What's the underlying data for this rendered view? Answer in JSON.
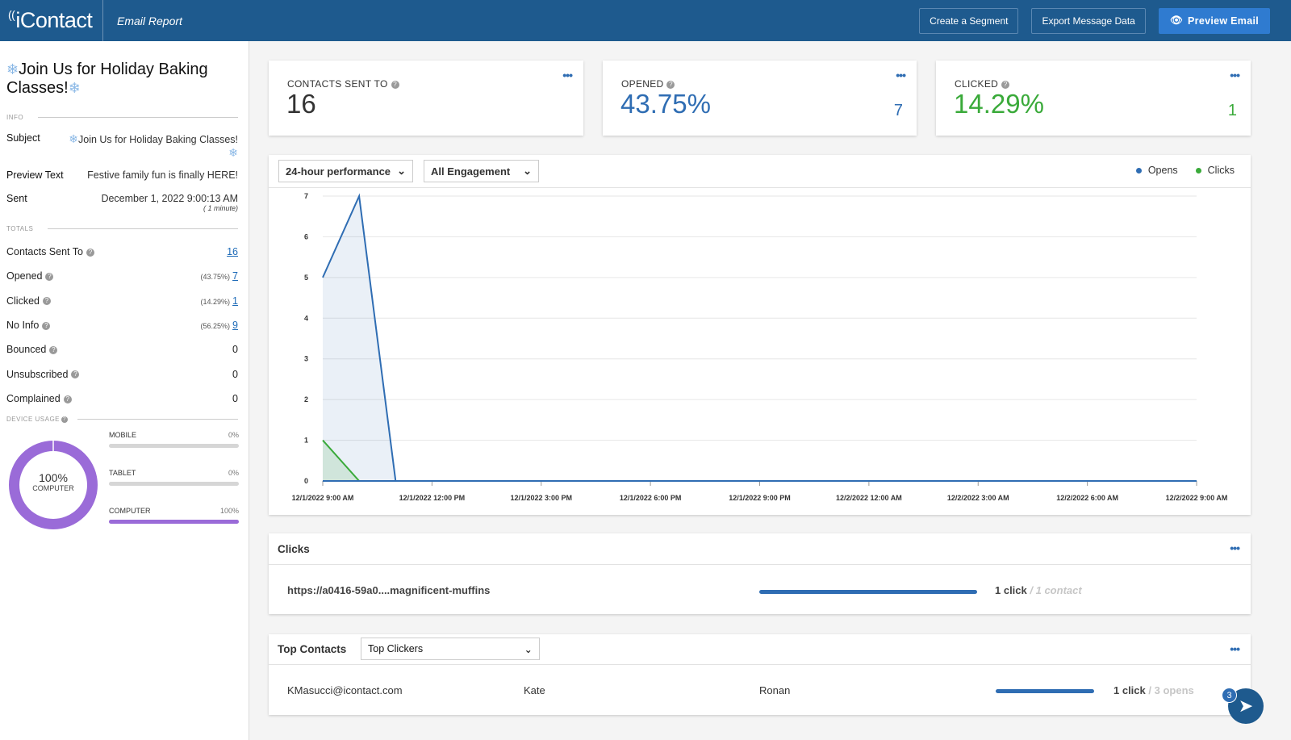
{
  "header": {
    "logo": "iContact",
    "page_label": "Email Report",
    "actions": {
      "create_segment": "Create a Segment",
      "export": "Export Message Data",
      "preview": "Preview Email"
    }
  },
  "sidebar": {
    "title": "Join Us for Holiday Baking Classes!",
    "info_label": "INFO",
    "subject_key": "Subject",
    "subject_val": "Join Us for Holiday Baking Classes!",
    "preview_key": "Preview Text",
    "preview_val": "Festive family fun is finally HERE!",
    "sent_key": "Sent",
    "sent_val": "December 1, 2022 9:00:13 AM",
    "sent_duration": "( 1 minute)",
    "totals_label": "TOTALS",
    "totals": [
      {
        "label": "Contacts Sent To",
        "pct": "",
        "value": "16",
        "link": true
      },
      {
        "label": "Opened",
        "pct": "(43.75%)",
        "value": "7",
        "link": true
      },
      {
        "label": "Clicked",
        "pct": "(14.29%)",
        "value": "1",
        "link": true
      },
      {
        "label": "No Info",
        "pct": "(56.25%)",
        "value": "9",
        "link": true
      },
      {
        "label": "Bounced",
        "pct": "",
        "value": "0",
        "link": false
      },
      {
        "label": "Unsubscribed",
        "pct": "",
        "value": "0",
        "link": false
      },
      {
        "label": "Complained",
        "pct": "",
        "value": "0",
        "link": false
      }
    ],
    "device_label": "DEVICE USAGE",
    "donut_pct": "100%",
    "donut_caption": "COMPUTER",
    "devices": [
      {
        "name": "MOBILE",
        "pct": "0%",
        "fill": 0
      },
      {
        "name": "TABLET",
        "pct": "0%",
        "fill": 0
      },
      {
        "name": "COMPUTER",
        "pct": "100%",
        "fill": 1
      }
    ]
  },
  "stats": {
    "sent": {
      "label": "CONTACTS SENT TO",
      "value": "16"
    },
    "opened": {
      "label": "OPENED",
      "value": "43.75%",
      "count": "7",
      "color": "#2f6db3"
    },
    "clicked": {
      "label": "CLICKED",
      "value": "14.29%",
      "count": "1",
      "color": "#3aaa3a"
    }
  },
  "chart_panel": {
    "performance_select": "24-hour performance",
    "engagement_select": "All Engagement",
    "legend": {
      "opens": "Opens",
      "clicks": "Clicks"
    }
  },
  "chart_data": {
    "type": "area",
    "x": [
      "12/1/2022 9:00 AM",
      "12/1/2022 10:00 AM",
      "12/1/2022 11:00 AM",
      "12/1/2022 12:00 PM",
      "12/1/2022 3:00 PM",
      "12/1/2022 6:00 PM",
      "12/1/2022 9:00 PM",
      "12/2/2022 12:00 AM",
      "12/2/2022 3:00 AM",
      "12/2/2022 6:00 AM",
      "12/2/2022 9:00 AM"
    ],
    "x_hours": [
      0,
      1,
      2,
      3,
      6,
      9,
      12,
      15,
      18,
      21,
      24
    ],
    "tick_labels": [
      "12/1/2022 9:00 AM",
      "12/1/2022 12:00 PM",
      "12/1/2022 3:00 PM",
      "12/1/2022 6:00 PM",
      "12/1/2022 9:00 PM",
      "12/2/2022 12:00 AM",
      "12/2/2022 3:00 AM",
      "12/2/2022 6:00 AM",
      "12/2/2022 9:00 AM"
    ],
    "series": [
      {
        "name": "Opens",
        "color": "#2f6db3",
        "values": [
          5,
          7,
          0,
          0,
          0,
          0,
          0,
          0,
          0,
          0,
          0
        ]
      },
      {
        "name": "Clicks",
        "color": "#3aaa3a",
        "values": [
          1,
          0,
          0,
          0,
          0,
          0,
          0,
          0,
          0,
          0,
          0
        ]
      }
    ],
    "ylim": [
      0,
      7
    ],
    "yticks": [
      0,
      1,
      2,
      3,
      4,
      5,
      6,
      7
    ],
    "grid": true,
    "legend_position": "top-right"
  },
  "clicks_panel": {
    "title": "Clicks",
    "url": "https://a0416-59a0....magnificent-muffins",
    "count": "1 click",
    "contacts": "/ 1 contact"
  },
  "top_contacts": {
    "title": "Top Contacts",
    "select": "Top Clickers",
    "row": {
      "email": "KMasucci@icontact.com",
      "first": "Kate",
      "last": "Ronan",
      "count": "1 click",
      "opens": "/ 3 opens"
    }
  },
  "chat": {
    "badge": "3"
  }
}
